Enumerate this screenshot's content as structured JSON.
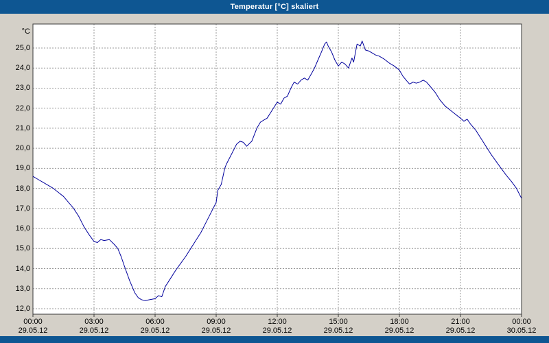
{
  "window": {
    "title": "Temperatur [°C] skaliert"
  },
  "colors": {
    "title_bar": "#0e5692",
    "title_text": "#ffffff",
    "background": "#d4d0c8",
    "plot_background": "#ffffff",
    "grid": "#9a9a9a",
    "axis_border": "#3a3a3a",
    "line": "#00009c",
    "label_text": "#000000"
  },
  "chart_data": {
    "type": "line",
    "title": "Temperatur [°C] skaliert",
    "xlabel": "",
    "ylabel": "°C",
    "y_unit_label": "°C",
    "grid": true,
    "grid_style": "dashed",
    "legend": "none",
    "x_range_hours": [
      0,
      24
    ],
    "y_axis_range": [
      11.7,
      26.2
    ],
    "y_ticks": [
      {
        "value": 12,
        "label": "12,0"
      },
      {
        "value": 13,
        "label": "13,0"
      },
      {
        "value": 14,
        "label": "14,0"
      },
      {
        "value": 15,
        "label": "15,0"
      },
      {
        "value": 16,
        "label": "16,0"
      },
      {
        "value": 17,
        "label": "17,0"
      },
      {
        "value": 18,
        "label": "18,0"
      },
      {
        "value": 19,
        "label": "19,0"
      },
      {
        "value": 20,
        "label": "20,0"
      },
      {
        "value": 21,
        "label": "21,0"
      },
      {
        "value": 22,
        "label": "22,0"
      },
      {
        "value": 23,
        "label": "23,0"
      },
      {
        "value": 24,
        "label": "24,0"
      },
      {
        "value": 25,
        "label": "25,0"
      }
    ],
    "x_ticks": [
      {
        "hour": 0,
        "time": "00:00",
        "date": "29.05.12"
      },
      {
        "hour": 3,
        "time": "03:00",
        "date": "29.05.12"
      },
      {
        "hour": 6,
        "time": "06:00",
        "date": "29.05.12"
      },
      {
        "hour": 9,
        "time": "09:00",
        "date": "29.05.12"
      },
      {
        "hour": 12,
        "time": "12:00",
        "date": "29.05.12"
      },
      {
        "hour": 15,
        "time": "15:00",
        "date": "29.05.12"
      },
      {
        "hour": 18,
        "time": "18:00",
        "date": "29.05.12"
      },
      {
        "hour": 21,
        "time": "21:00",
        "date": "29.05.12"
      },
      {
        "hour": 24,
        "time": "00:00",
        "date": "30.05.12"
      }
    ],
    "series": [
      {
        "name": "Temperatur",
        "unit": "°C",
        "points": [
          [
            0,
            18.6
          ],
          [
            0.25,
            18.45
          ],
          [
            0.5,
            18.3
          ],
          [
            0.75,
            18.15
          ],
          [
            1,
            18.0
          ],
          [
            1.25,
            17.8
          ],
          [
            1.5,
            17.6
          ],
          [
            1.75,
            17.3
          ],
          [
            2,
            17.0
          ],
          [
            2.25,
            16.6
          ],
          [
            2.5,
            16.1
          ],
          [
            2.75,
            15.7
          ],
          [
            3,
            15.35
          ],
          [
            3.17,
            15.3
          ],
          [
            3.33,
            15.45
          ],
          [
            3.5,
            15.4
          ],
          [
            3.75,
            15.45
          ],
          [
            4,
            15.2
          ],
          [
            4.17,
            15.0
          ],
          [
            4.33,
            14.6
          ],
          [
            4.5,
            14.1
          ],
          [
            4.75,
            13.4
          ],
          [
            5,
            12.8
          ],
          [
            5.17,
            12.55
          ],
          [
            5.33,
            12.45
          ],
          [
            5.5,
            12.4
          ],
          [
            5.75,
            12.45
          ],
          [
            6,
            12.5
          ],
          [
            6.17,
            12.65
          ],
          [
            6.33,
            12.6
          ],
          [
            6.5,
            13.1
          ],
          [
            6.75,
            13.5
          ],
          [
            7,
            13.9
          ],
          [
            7.25,
            14.25
          ],
          [
            7.5,
            14.6
          ],
          [
            7.75,
            15.0
          ],
          [
            8,
            15.4
          ],
          [
            8.25,
            15.8
          ],
          [
            8.5,
            16.3
          ],
          [
            8.75,
            16.8
          ],
          [
            9,
            17.3
          ],
          [
            9.08,
            17.9
          ],
          [
            9.25,
            18.2
          ],
          [
            9.42,
            19.0
          ],
          [
            9.5,
            19.2
          ],
          [
            9.75,
            19.7
          ],
          [
            10,
            20.2
          ],
          [
            10.17,
            20.35
          ],
          [
            10.33,
            20.3
          ],
          [
            10.5,
            20.1
          ],
          [
            10.75,
            20.35
          ],
          [
            11,
            21.0
          ],
          [
            11.17,
            21.3
          ],
          [
            11.33,
            21.4
          ],
          [
            11.5,
            21.5
          ],
          [
            11.75,
            21.9
          ],
          [
            12,
            22.3
          ],
          [
            12.17,
            22.2
          ],
          [
            12.33,
            22.5
          ],
          [
            12.5,
            22.6
          ],
          [
            12.67,
            23.0
          ],
          [
            12.83,
            23.3
          ],
          [
            13,
            23.2
          ],
          [
            13.17,
            23.4
          ],
          [
            13.33,
            23.5
          ],
          [
            13.5,
            23.4
          ],
          [
            13.67,
            23.7
          ],
          [
            13.83,
            24.0
          ],
          [
            14,
            24.4
          ],
          [
            14.17,
            24.8
          ],
          [
            14.33,
            25.2
          ],
          [
            14.42,
            25.3
          ],
          [
            14.5,
            25.1
          ],
          [
            14.67,
            24.8
          ],
          [
            14.83,
            24.4
          ],
          [
            15,
            24.1
          ],
          [
            15.17,
            24.3
          ],
          [
            15.33,
            24.2
          ],
          [
            15.5,
            24.0
          ],
          [
            15.67,
            24.5
          ],
          [
            15.75,
            24.3
          ],
          [
            15.92,
            25.2
          ],
          [
            16.08,
            25.1
          ],
          [
            16.17,
            25.35
          ],
          [
            16.33,
            24.9
          ],
          [
            16.5,
            24.85
          ],
          [
            16.67,
            24.75
          ],
          [
            16.83,
            24.65
          ],
          [
            17,
            24.6
          ],
          [
            17.25,
            24.45
          ],
          [
            17.5,
            24.25
          ],
          [
            17.75,
            24.1
          ],
          [
            18,
            23.9
          ],
          [
            18.17,
            23.6
          ],
          [
            18.33,
            23.4
          ],
          [
            18.5,
            23.2
          ],
          [
            18.67,
            23.3
          ],
          [
            18.83,
            23.25
          ],
          [
            19,
            23.3
          ],
          [
            19.17,
            23.4
          ],
          [
            19.33,
            23.3
          ],
          [
            19.5,
            23.1
          ],
          [
            19.75,
            22.8
          ],
          [
            20,
            22.4
          ],
          [
            20.25,
            22.1
          ],
          [
            20.5,
            21.9
          ],
          [
            20.75,
            21.7
          ],
          [
            21,
            21.5
          ],
          [
            21.17,
            21.35
          ],
          [
            21.33,
            21.45
          ],
          [
            21.5,
            21.2
          ],
          [
            21.75,
            20.9
          ],
          [
            22,
            20.5
          ],
          [
            22.25,
            20.1
          ],
          [
            22.5,
            19.7
          ],
          [
            22.75,
            19.35
          ],
          [
            23,
            19.0
          ],
          [
            23.25,
            18.65
          ],
          [
            23.5,
            18.35
          ],
          [
            23.75,
            18.0
          ],
          [
            24,
            17.5
          ]
        ]
      }
    ]
  }
}
